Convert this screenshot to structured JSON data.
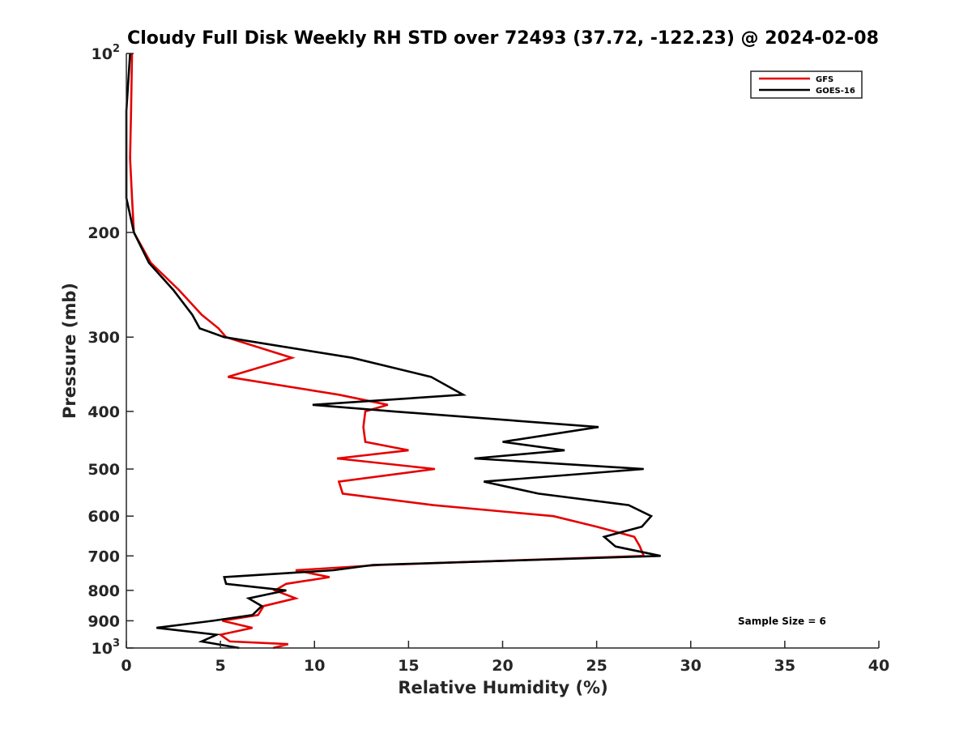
{
  "chart_data": {
    "type": "line",
    "title": "Cloudy Full Disk Weekly RH STD over 72493 (37.72, -122.23) @ 2024-02-08",
    "xlabel": "Relative Humidity (%)",
    "ylabel": "Pressure (mb)",
    "xlim": [
      0,
      40
    ],
    "ylim": [
      100,
      1000
    ],
    "y_scale": "log",
    "y_reversed": true,
    "grid": false,
    "legend_position": "top-right",
    "x_ticks": [
      0,
      5,
      10,
      15,
      20,
      25,
      30,
      35,
      40
    ],
    "x_tick_labels": [
      "0",
      "5",
      "10",
      "15",
      "20",
      "25",
      "30",
      "35",
      "40"
    ],
    "y_ticks": [
      100,
      200,
      300,
      400,
      500,
      600,
      700,
      800,
      900,
      1000
    ],
    "y_tick_labels": [
      "10^2",
      "200",
      "300",
      "400",
      "500",
      "600",
      "700",
      "800",
      "900",
      "10^3"
    ],
    "annotation": "Sample Size = 6",
    "series": [
      {
        "name": "GFS",
        "color": "#e60000",
        "points": [
          [
            0.3,
            100
          ],
          [
            0.25,
            125
          ],
          [
            0.2,
            150
          ],
          [
            0.3,
            175
          ],
          [
            0.4,
            200
          ],
          [
            1.3,
            225
          ],
          [
            2.8,
            250
          ],
          [
            4.0,
            275
          ],
          [
            4.9,
            290
          ],
          [
            5.3,
            300
          ],
          [
            8.8,
            325
          ],
          [
            5.4,
            350
          ],
          [
            11.3,
            375
          ],
          [
            13.9,
            390
          ],
          [
            12.7,
            400
          ],
          [
            12.6,
            425
          ],
          [
            12.7,
            450
          ],
          [
            15.0,
            465
          ],
          [
            11.2,
            480
          ],
          [
            16.4,
            500
          ],
          [
            11.3,
            525
          ],
          [
            11.5,
            550
          ],
          [
            16.3,
            575
          ],
          [
            22.7,
            600
          ],
          [
            25.0,
            625
          ],
          [
            27.0,
            650
          ],
          [
            27.3,
            675
          ],
          [
            27.5,
            700
          ],
          [
            13.5,
            725
          ],
          [
            9.0,
            740
          ],
          [
            10.8,
            760
          ],
          [
            8.5,
            780
          ],
          [
            7.9,
            800
          ],
          [
            9.0,
            825
          ],
          [
            7.3,
            850
          ],
          [
            7.0,
            880
          ],
          [
            5.1,
            900
          ],
          [
            6.7,
            925
          ],
          [
            5.0,
            950
          ],
          [
            5.5,
            975
          ],
          [
            8.6,
            985
          ],
          [
            7.8,
            1000
          ]
        ]
      },
      {
        "name": "GOES-16",
        "color": "#000000",
        "points": [
          [
            0.2,
            100
          ],
          [
            0.0,
            125
          ],
          [
            0.0,
            150
          ],
          [
            0.0,
            175
          ],
          [
            0.4,
            200
          ],
          [
            1.2,
            225
          ],
          [
            2.5,
            250
          ],
          [
            3.5,
            275
          ],
          [
            3.9,
            290
          ],
          [
            5.2,
            300
          ],
          [
            12.0,
            325
          ],
          [
            16.2,
            350
          ],
          [
            17.9,
            375
          ],
          [
            9.9,
            390
          ],
          [
            14.2,
            400
          ],
          [
            25.1,
            425
          ],
          [
            20.0,
            450
          ],
          [
            23.3,
            465
          ],
          [
            18.5,
            480
          ],
          [
            27.5,
            500
          ],
          [
            19.0,
            525
          ],
          [
            21.9,
            550
          ],
          [
            26.7,
            575
          ],
          [
            27.9,
            600
          ],
          [
            27.4,
            625
          ],
          [
            25.4,
            650
          ],
          [
            26.0,
            675
          ],
          [
            28.4,
            700
          ],
          [
            13.1,
            725
          ],
          [
            11.0,
            740
          ],
          [
            5.2,
            760
          ],
          [
            5.3,
            780
          ],
          [
            8.5,
            800
          ],
          [
            6.5,
            825
          ],
          [
            7.2,
            850
          ],
          [
            6.7,
            880
          ],
          [
            4.6,
            900
          ],
          [
            1.6,
            925
          ],
          [
            4.8,
            950
          ],
          [
            4.0,
            975
          ],
          [
            6.0,
            1000
          ]
        ]
      }
    ]
  }
}
